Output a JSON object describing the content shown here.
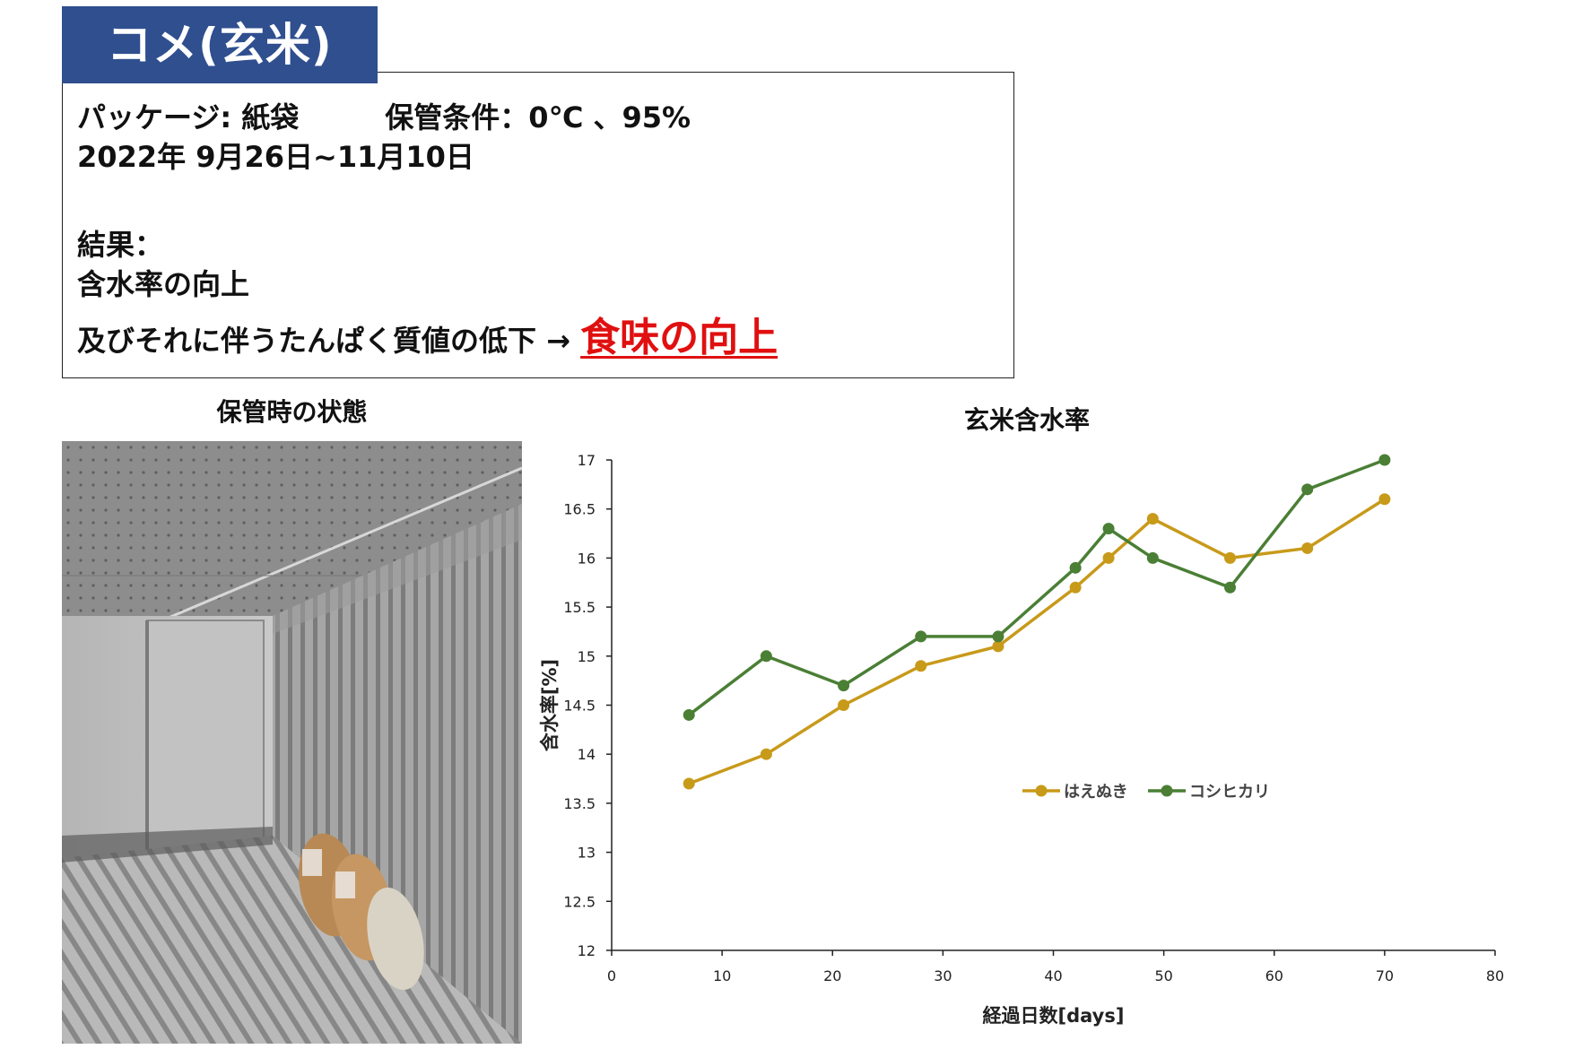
{
  "header": {
    "title": "コメ(玄米)",
    "package_line": "パッケージ: 紙袋　　　保管条件：0℃ 、95%",
    "period_line": "2022年 9月26日~11月10日",
    "result_label": "結果：",
    "result_line1": "含水率の向上",
    "result_line2": "及びそれに伴うたんぱく質値の低下 →",
    "result_highlight": "食味の向上"
  },
  "photo": {
    "caption": "保管時の状態"
  },
  "colors": {
    "title_bg": "#2f4f8f",
    "highlight": "#e01010",
    "series_haenuki": "#c89a1a",
    "series_koshihikari": "#4a7f35"
  },
  "chart_data": {
    "type": "line",
    "title": "玄米含水率",
    "xlabel": "経過日数[days]",
    "ylabel": "含水率[%]",
    "xlim": [
      0,
      80
    ],
    "ylim": [
      12,
      17
    ],
    "x_ticks": [
      0,
      10,
      20,
      30,
      40,
      50,
      60,
      70,
      80
    ],
    "y_ticks": [
      12,
      12.5,
      13,
      13.5,
      14,
      14.5,
      15,
      15.5,
      16,
      16.5,
      17
    ],
    "grid": false,
    "legend": "inside-right",
    "series": [
      {
        "name": "はえぬき",
        "color": "#c89a1a",
        "x": [
          7,
          14,
          21,
          28,
          35,
          42,
          45,
          49,
          56,
          63,
          70
        ],
        "y": [
          13.7,
          14.0,
          14.5,
          14.9,
          15.1,
          15.7,
          16.0,
          16.4,
          16.0,
          16.1,
          16.6
        ]
      },
      {
        "name": "コシヒカリ",
        "color": "#4a7f35",
        "x": [
          7,
          14,
          21,
          28,
          35,
          42,
          45,
          49,
          56,
          63,
          70
        ],
        "y": [
          14.4,
          15.0,
          14.7,
          15.2,
          15.2,
          15.9,
          16.3,
          16.0,
          15.7,
          16.7,
          17.0
        ]
      }
    ]
  }
}
